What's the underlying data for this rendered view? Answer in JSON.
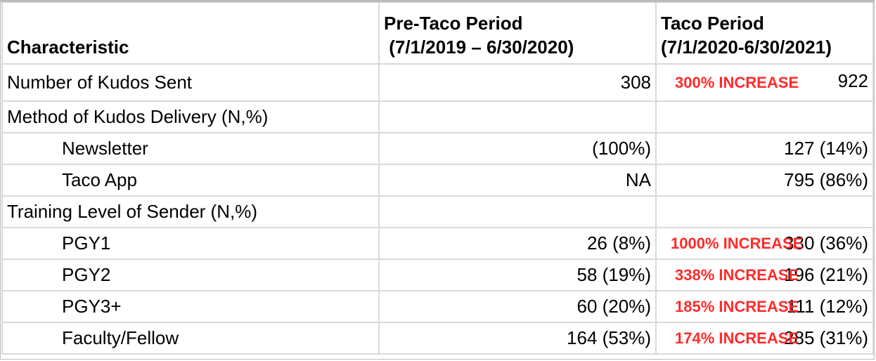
{
  "header": {
    "characteristic": "Characteristic",
    "pre_title": "Pre-Taco Period",
    "pre_range": " (7/1/2019 – 6/30/2020)",
    "taco_title": "Taco Period",
    "taco_range": "(7/1/2020-6/30/2021)"
  },
  "rows": [
    {
      "label": "Number of Kudos Sent",
      "pre": "308",
      "increase": "300% INCREASE",
      "taco": "922"
    },
    {
      "label": "Method of Kudos Delivery (N,%)",
      "pre": "",
      "increase": "",
      "taco": ""
    },
    {
      "label": "Newsletter",
      "pre": "(100%)",
      "increase": "",
      "taco": "127 (14%)"
    },
    {
      "label": "Taco App",
      "pre": "NA",
      "increase": "",
      "taco": "795 (86%)"
    },
    {
      "label": "Training Level of Sender (N,%)",
      "pre": "",
      "increase": "",
      "taco": ""
    },
    {
      "label": "PGY1",
      "pre": "26 (8%)",
      "increase": "1000% INCREASE",
      "taco": "330 (36%)"
    },
    {
      "label": "PGY2",
      "pre": "58 (19%)",
      "increase": "338% INCREASE",
      "taco": "196 (21%)"
    },
    {
      "label": "PGY3+",
      "pre": "60 (20%)",
      "increase": "185% INCREASE",
      "taco": "111 (12%)"
    },
    {
      "label": "Faculty/Fellow",
      "pre": "164 (53%)",
      "increase": "174% INCREASE",
      "taco": "285 (31%)"
    }
  ],
  "colors": {
    "increase": "#ff2a2a",
    "grid": "#d9d9d9"
  }
}
